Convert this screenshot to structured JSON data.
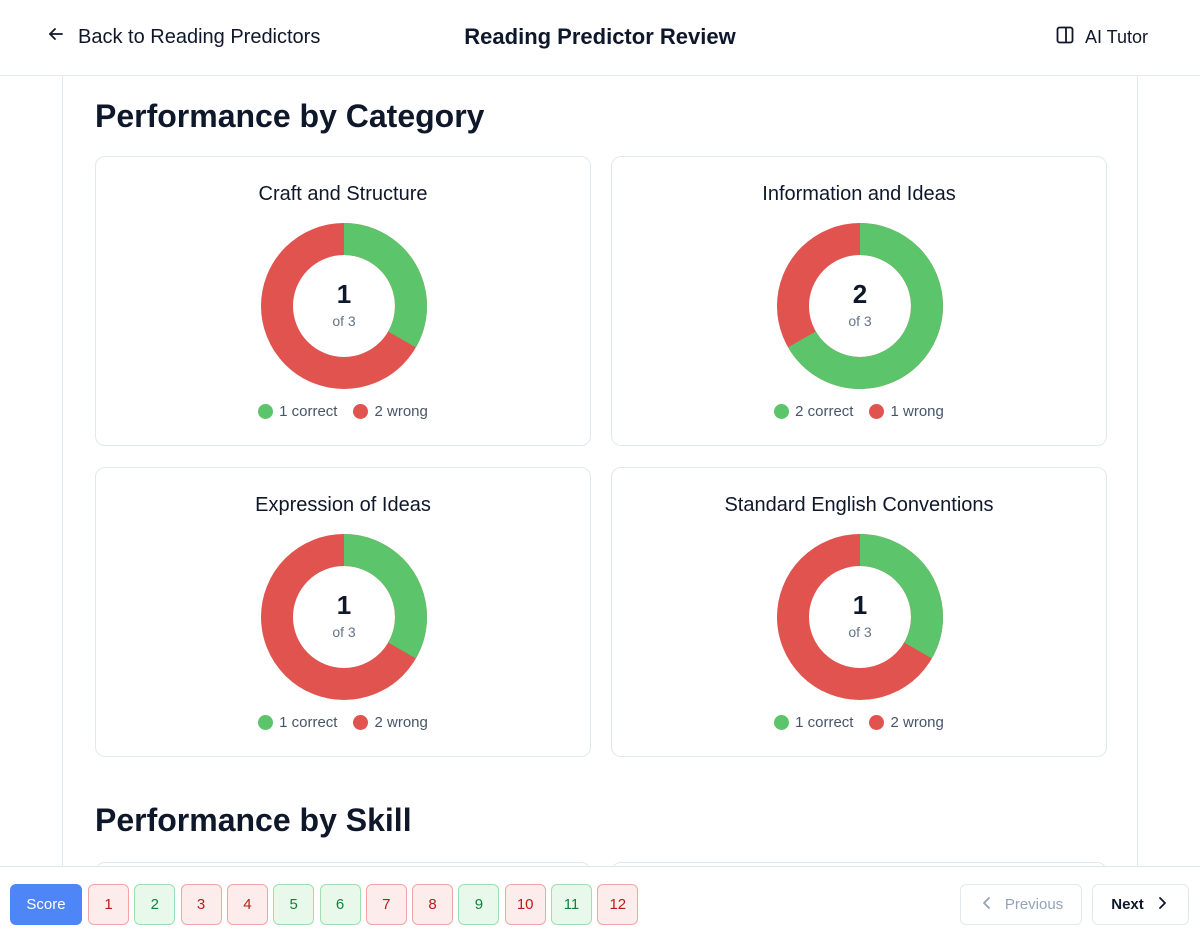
{
  "header": {
    "back_label": "Back to Reading Predictors",
    "title": "Reading Predictor Review",
    "tutor_label": "AI Tutor"
  },
  "sections": {
    "category_title": "Performance by Category",
    "skill_title": "Performance by Skill"
  },
  "colors": {
    "correct": "#5cc46a",
    "wrong": "#e0534f",
    "primary": "#4f86f7"
  },
  "categories": [
    {
      "name": "Craft and Structure",
      "correct": 1,
      "total": 3,
      "of_label": "of 3",
      "correct_label": "1 correct",
      "wrong_label": "2 wrong"
    },
    {
      "name": "Information and Ideas",
      "correct": 2,
      "total": 3,
      "of_label": "of 3",
      "correct_label": "2 correct",
      "wrong_label": "1 wrong"
    },
    {
      "name": "Expression of Ideas",
      "correct": 1,
      "total": 3,
      "of_label": "of 3",
      "correct_label": "1 correct",
      "wrong_label": "2 wrong"
    },
    {
      "name": "Standard English Conventions",
      "correct": 1,
      "total": 3,
      "of_label": "of 3",
      "correct_label": "1 correct",
      "wrong_label": "2 wrong"
    }
  ],
  "footer": {
    "score_label": "Score",
    "questions": [
      {
        "label": "1",
        "status": "wrong"
      },
      {
        "label": "2",
        "status": "correct"
      },
      {
        "label": "3",
        "status": "wrong"
      },
      {
        "label": "4",
        "status": "wrong"
      },
      {
        "label": "5",
        "status": "correct"
      },
      {
        "label": "6",
        "status": "correct"
      },
      {
        "label": "7",
        "status": "wrong"
      },
      {
        "label": "8",
        "status": "wrong"
      },
      {
        "label": "9",
        "status": "correct"
      },
      {
        "label": "10",
        "status": "wrong"
      },
      {
        "label": "11",
        "status": "correct"
      },
      {
        "label": "12",
        "status": "wrong"
      }
    ],
    "previous_label": "Previous",
    "next_label": "Next"
  }
}
